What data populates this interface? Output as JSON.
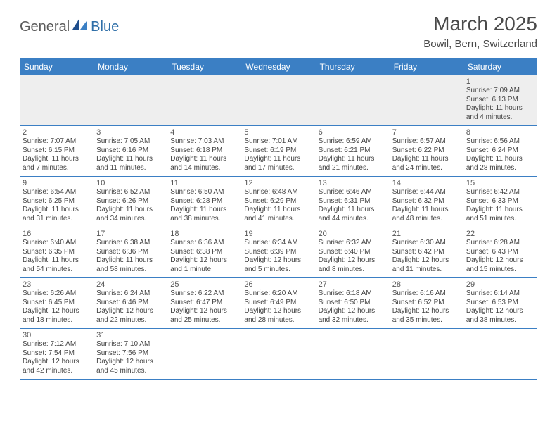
{
  "logo": {
    "general": "General",
    "blue": "Blue"
  },
  "title": "March 2025",
  "location": "Bowil, Bern, Switzerland",
  "colors": {
    "header_bg": "#3b7fc4",
    "header_text": "#ffffff",
    "rule": "#3b7fc4",
    "empty_bg": "#eeeeee",
    "text": "#444444"
  },
  "weekdays": [
    "Sunday",
    "Monday",
    "Tuesday",
    "Wednesday",
    "Thursday",
    "Friday",
    "Saturday"
  ],
  "weeks": [
    [
      null,
      null,
      null,
      null,
      null,
      null,
      {
        "n": "1",
        "sr": "Sunrise: 7:09 AM",
        "ss": "Sunset: 6:13 PM",
        "dl1": "Daylight: 11 hours",
        "dl2": "and 4 minutes."
      }
    ],
    [
      {
        "n": "2",
        "sr": "Sunrise: 7:07 AM",
        "ss": "Sunset: 6:15 PM",
        "dl1": "Daylight: 11 hours",
        "dl2": "and 7 minutes."
      },
      {
        "n": "3",
        "sr": "Sunrise: 7:05 AM",
        "ss": "Sunset: 6:16 PM",
        "dl1": "Daylight: 11 hours",
        "dl2": "and 11 minutes."
      },
      {
        "n": "4",
        "sr": "Sunrise: 7:03 AM",
        "ss": "Sunset: 6:18 PM",
        "dl1": "Daylight: 11 hours",
        "dl2": "and 14 minutes."
      },
      {
        "n": "5",
        "sr": "Sunrise: 7:01 AM",
        "ss": "Sunset: 6:19 PM",
        "dl1": "Daylight: 11 hours",
        "dl2": "and 17 minutes."
      },
      {
        "n": "6",
        "sr": "Sunrise: 6:59 AM",
        "ss": "Sunset: 6:21 PM",
        "dl1": "Daylight: 11 hours",
        "dl2": "and 21 minutes."
      },
      {
        "n": "7",
        "sr": "Sunrise: 6:57 AM",
        "ss": "Sunset: 6:22 PM",
        "dl1": "Daylight: 11 hours",
        "dl2": "and 24 minutes."
      },
      {
        "n": "8",
        "sr": "Sunrise: 6:56 AM",
        "ss": "Sunset: 6:24 PM",
        "dl1": "Daylight: 11 hours",
        "dl2": "and 28 minutes."
      }
    ],
    [
      {
        "n": "9",
        "sr": "Sunrise: 6:54 AM",
        "ss": "Sunset: 6:25 PM",
        "dl1": "Daylight: 11 hours",
        "dl2": "and 31 minutes."
      },
      {
        "n": "10",
        "sr": "Sunrise: 6:52 AM",
        "ss": "Sunset: 6:26 PM",
        "dl1": "Daylight: 11 hours",
        "dl2": "and 34 minutes."
      },
      {
        "n": "11",
        "sr": "Sunrise: 6:50 AM",
        "ss": "Sunset: 6:28 PM",
        "dl1": "Daylight: 11 hours",
        "dl2": "and 38 minutes."
      },
      {
        "n": "12",
        "sr": "Sunrise: 6:48 AM",
        "ss": "Sunset: 6:29 PM",
        "dl1": "Daylight: 11 hours",
        "dl2": "and 41 minutes."
      },
      {
        "n": "13",
        "sr": "Sunrise: 6:46 AM",
        "ss": "Sunset: 6:31 PM",
        "dl1": "Daylight: 11 hours",
        "dl2": "and 44 minutes."
      },
      {
        "n": "14",
        "sr": "Sunrise: 6:44 AM",
        "ss": "Sunset: 6:32 PM",
        "dl1": "Daylight: 11 hours",
        "dl2": "and 48 minutes."
      },
      {
        "n": "15",
        "sr": "Sunrise: 6:42 AM",
        "ss": "Sunset: 6:33 PM",
        "dl1": "Daylight: 11 hours",
        "dl2": "and 51 minutes."
      }
    ],
    [
      {
        "n": "16",
        "sr": "Sunrise: 6:40 AM",
        "ss": "Sunset: 6:35 PM",
        "dl1": "Daylight: 11 hours",
        "dl2": "and 54 minutes."
      },
      {
        "n": "17",
        "sr": "Sunrise: 6:38 AM",
        "ss": "Sunset: 6:36 PM",
        "dl1": "Daylight: 11 hours",
        "dl2": "and 58 minutes."
      },
      {
        "n": "18",
        "sr": "Sunrise: 6:36 AM",
        "ss": "Sunset: 6:38 PM",
        "dl1": "Daylight: 12 hours",
        "dl2": "and 1 minute."
      },
      {
        "n": "19",
        "sr": "Sunrise: 6:34 AM",
        "ss": "Sunset: 6:39 PM",
        "dl1": "Daylight: 12 hours",
        "dl2": "and 5 minutes."
      },
      {
        "n": "20",
        "sr": "Sunrise: 6:32 AM",
        "ss": "Sunset: 6:40 PM",
        "dl1": "Daylight: 12 hours",
        "dl2": "and 8 minutes."
      },
      {
        "n": "21",
        "sr": "Sunrise: 6:30 AM",
        "ss": "Sunset: 6:42 PM",
        "dl1": "Daylight: 12 hours",
        "dl2": "and 11 minutes."
      },
      {
        "n": "22",
        "sr": "Sunrise: 6:28 AM",
        "ss": "Sunset: 6:43 PM",
        "dl1": "Daylight: 12 hours",
        "dl2": "and 15 minutes."
      }
    ],
    [
      {
        "n": "23",
        "sr": "Sunrise: 6:26 AM",
        "ss": "Sunset: 6:45 PM",
        "dl1": "Daylight: 12 hours",
        "dl2": "and 18 minutes."
      },
      {
        "n": "24",
        "sr": "Sunrise: 6:24 AM",
        "ss": "Sunset: 6:46 PM",
        "dl1": "Daylight: 12 hours",
        "dl2": "and 22 minutes."
      },
      {
        "n": "25",
        "sr": "Sunrise: 6:22 AM",
        "ss": "Sunset: 6:47 PM",
        "dl1": "Daylight: 12 hours",
        "dl2": "and 25 minutes."
      },
      {
        "n": "26",
        "sr": "Sunrise: 6:20 AM",
        "ss": "Sunset: 6:49 PM",
        "dl1": "Daylight: 12 hours",
        "dl2": "and 28 minutes."
      },
      {
        "n": "27",
        "sr": "Sunrise: 6:18 AM",
        "ss": "Sunset: 6:50 PM",
        "dl1": "Daylight: 12 hours",
        "dl2": "and 32 minutes."
      },
      {
        "n": "28",
        "sr": "Sunrise: 6:16 AM",
        "ss": "Sunset: 6:52 PM",
        "dl1": "Daylight: 12 hours",
        "dl2": "and 35 minutes."
      },
      {
        "n": "29",
        "sr": "Sunrise: 6:14 AM",
        "ss": "Sunset: 6:53 PM",
        "dl1": "Daylight: 12 hours",
        "dl2": "and 38 minutes."
      }
    ],
    [
      {
        "n": "30",
        "sr": "Sunrise: 7:12 AM",
        "ss": "Sunset: 7:54 PM",
        "dl1": "Daylight: 12 hours",
        "dl2": "and 42 minutes."
      },
      {
        "n": "31",
        "sr": "Sunrise: 7:10 AM",
        "ss": "Sunset: 7:56 PM",
        "dl1": "Daylight: 12 hours",
        "dl2": "and 45 minutes."
      },
      null,
      null,
      null,
      null,
      null
    ]
  ]
}
